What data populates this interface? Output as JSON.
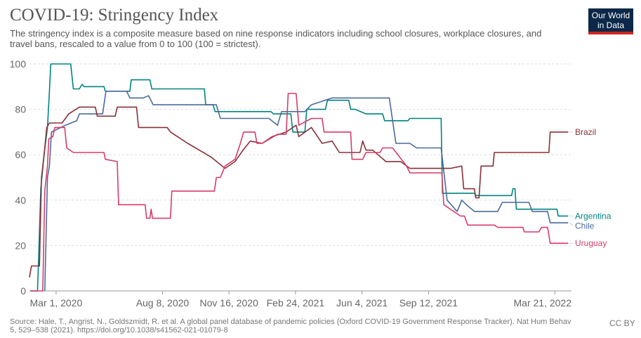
{
  "header": {
    "title": "COVID-19: Stringency Index",
    "subtitle": "The stringency index is a composite measure based on nine response indicators including school closures, workplace closures, and travel bans, rescaled to a value from 0 to 100 (100 = strictest)."
  },
  "logo": {
    "line1": "Our World",
    "line2": "in Data"
  },
  "footer": {
    "source": "Source: Hale, T., Angrist, N., Goldszmidt, R. et al. A global panel database of pandemic policies (Oxford COVID-19 Government Response Tracker). Nat Hum Behav 5, 529–538 (2021). https://doi.org/10.1038/s41562-021-01079-8",
    "license": "CC BY"
  },
  "chart_data": {
    "type": "line",
    "title": "COVID-19: Stringency Index",
    "xlabel": "",
    "ylabel": "",
    "ylim": [
      0,
      100
    ],
    "y_ticks": [
      0,
      20,
      40,
      60,
      80,
      100
    ],
    "x_range": [
      "2020-01-21",
      "2022-04-15"
    ],
    "x_ticks": [
      {
        "date": "2020-03-01",
        "label": "Mar 1, 2020"
      },
      {
        "date": "2020-08-08",
        "label": "Aug 8, 2020"
      },
      {
        "date": "2020-11-16",
        "label": "Nov 16, 2020"
      },
      {
        "date": "2021-02-24",
        "label": "Feb 24, 2021"
      },
      {
        "date": "2021-06-04",
        "label": "Jun 4, 2021"
      },
      {
        "date": "2021-09-12",
        "label": "Sep 12, 2021"
      },
      {
        "date": "2022-03-21",
        "label": "Mar 21, 2022"
      }
    ],
    "grid": true,
    "legend": "right-end labels",
    "series": [
      {
        "name": "Argentina",
        "color": "#00847e",
        "points": [
          [
            "2020-01-23",
            0
          ],
          [
            "2020-02-02",
            0
          ],
          [
            "2020-02-04",
            17
          ],
          [
            "2020-02-07",
            45
          ],
          [
            "2020-02-12",
            60
          ],
          [
            "2020-02-17",
            72
          ],
          [
            "2020-02-20",
            88
          ],
          [
            "2020-02-22",
            100
          ],
          [
            "2020-03-23",
            100
          ],
          [
            "2020-03-27",
            89
          ],
          [
            "2020-04-05",
            89
          ],
          [
            "2020-04-09",
            91
          ],
          [
            "2020-04-12",
            90
          ],
          [
            "2020-05-12",
            90
          ],
          [
            "2020-05-14",
            88
          ],
          [
            "2020-06-20",
            88
          ],
          [
            "2020-06-22",
            93
          ],
          [
            "2020-07-20",
            93
          ],
          [
            "2020-07-23",
            89
          ],
          [
            "2020-10-10",
            89
          ],
          [
            "2020-10-12",
            82
          ],
          [
            "2020-10-23",
            82
          ],
          [
            "2020-10-26",
            79
          ],
          [
            "2021-01-18",
            79
          ],
          [
            "2021-01-22",
            78
          ],
          [
            "2021-02-17",
            78
          ],
          [
            "2021-02-20",
            70
          ],
          [
            "2021-03-10",
            70
          ],
          [
            "2021-03-13",
            80
          ],
          [
            "2021-04-10",
            80
          ],
          [
            "2021-04-13",
            84
          ],
          [
            "2021-05-15",
            84
          ],
          [
            "2021-05-18",
            80
          ],
          [
            "2021-05-25",
            80
          ],
          [
            "2021-06-10",
            78
          ],
          [
            "2021-07-05",
            78
          ],
          [
            "2021-07-08",
            75
          ],
          [
            "2021-08-12",
            75
          ],
          [
            "2021-08-15",
            76
          ],
          [
            "2021-10-01",
            76
          ],
          [
            "2021-10-03",
            43
          ],
          [
            "2021-11-20",
            43
          ],
          [
            "2021-11-22",
            42
          ],
          [
            "2022-01-15",
            42
          ],
          [
            "2022-01-17",
            45
          ],
          [
            "2022-01-20",
            45
          ],
          [
            "2022-01-22",
            36
          ],
          [
            "2022-03-24",
            36
          ],
          [
            "2022-03-26",
            33
          ],
          [
            "2022-04-10",
            33
          ]
        ]
      },
      {
        "name": "Chile",
        "color": "#4c6a9c",
        "points": [
          [
            "2020-02-13",
            0
          ],
          [
            "2020-02-17",
            50
          ],
          [
            "2020-02-20",
            55
          ],
          [
            "2020-02-23",
            70
          ],
          [
            "2020-03-15",
            73
          ],
          [
            "2020-04-01",
            75
          ],
          [
            "2020-04-05",
            78
          ],
          [
            "2020-05-10",
            78
          ],
          [
            "2020-05-15",
            88
          ],
          [
            "2020-06-15",
            88
          ],
          [
            "2020-06-20",
            85
          ],
          [
            "2020-07-10",
            85
          ],
          [
            "2020-07-18",
            86
          ],
          [
            "2020-07-25",
            82
          ],
          [
            "2020-10-28",
            82
          ],
          [
            "2020-11-03",
            76
          ],
          [
            "2021-01-15",
            76
          ],
          [
            "2021-01-28",
            73
          ],
          [
            "2021-02-03",
            79
          ],
          [
            "2021-03-10",
            79
          ],
          [
            "2021-03-20",
            82
          ],
          [
            "2021-04-20",
            85
          ],
          [
            "2021-07-15",
            85
          ],
          [
            "2021-07-25",
            65
          ],
          [
            "2021-08-15",
            65
          ],
          [
            "2021-08-25",
            63
          ],
          [
            "2021-10-01",
            63
          ],
          [
            "2021-10-10",
            40
          ],
          [
            "2021-10-25",
            35
          ],
          [
            "2021-11-01",
            40
          ],
          [
            "2021-11-08",
            38
          ],
          [
            "2021-11-20",
            35
          ],
          [
            "2021-12-25",
            35
          ],
          [
            "2022-01-01",
            39
          ],
          [
            "2022-02-10",
            39
          ],
          [
            "2022-02-15",
            35
          ],
          [
            "2022-03-10",
            35
          ],
          [
            "2022-03-14",
            30
          ],
          [
            "2022-04-10",
            30
          ]
        ]
      },
      {
        "name": "Brazil",
        "color": "#883039",
        "points": [
          [
            "2020-01-21",
            6
          ],
          [
            "2020-01-24",
            11
          ],
          [
            "2020-02-05",
            11
          ],
          [
            "2020-02-08",
            50
          ],
          [
            "2020-02-12",
            60
          ],
          [
            "2020-02-16",
            72
          ],
          [
            "2020-02-20",
            74
          ],
          [
            "2020-03-10",
            74
          ],
          [
            "2020-03-20",
            78
          ],
          [
            "2020-04-05",
            81
          ],
          [
            "2020-04-29",
            81
          ],
          [
            "2020-05-02",
            77
          ],
          [
            "2020-05-29",
            77
          ],
          [
            "2020-06-01",
            81
          ],
          [
            "2020-06-30",
            81
          ],
          [
            "2020-07-03",
            72
          ],
          [
            "2020-08-15",
            72
          ],
          [
            "2020-08-20",
            70
          ],
          [
            "2020-09-15",
            65
          ],
          [
            "2020-10-20",
            59
          ],
          [
            "2020-11-10",
            54
          ],
          [
            "2020-11-25",
            57
          ],
          [
            "2020-12-07",
            62
          ],
          [
            "2020-12-18",
            66
          ],
          [
            "2021-01-05",
            65
          ],
          [
            "2021-01-20",
            68
          ],
          [
            "2021-02-10",
            70
          ],
          [
            "2021-02-25",
            73
          ],
          [
            "2021-03-01",
            68
          ],
          [
            "2021-03-20",
            72
          ],
          [
            "2021-04-05",
            65
          ],
          [
            "2021-04-20",
            66
          ],
          [
            "2021-05-01",
            61
          ],
          [
            "2021-06-01",
            61
          ],
          [
            "2021-06-05",
            66
          ],
          [
            "2021-06-10",
            62
          ],
          [
            "2021-06-20",
            62
          ],
          [
            "2021-07-10",
            57
          ],
          [
            "2021-08-01",
            57
          ],
          [
            "2021-08-15",
            54
          ],
          [
            "2021-10-15",
            54
          ],
          [
            "2021-11-01",
            55
          ],
          [
            "2021-11-04",
            45
          ],
          [
            "2021-11-20",
            45
          ],
          [
            "2021-11-22",
            41
          ],
          [
            "2021-11-27",
            41
          ],
          [
            "2021-11-30",
            55
          ],
          [
            "2021-12-18",
            55
          ],
          [
            "2021-12-20",
            61
          ],
          [
            "2022-03-12",
            61
          ],
          [
            "2022-03-14",
            70
          ],
          [
            "2022-04-10",
            70
          ]
        ]
      },
      {
        "name": "Uruguay",
        "color": "#d73c69",
        "points": [
          [
            "2020-01-22",
            0
          ],
          [
            "2020-02-10",
            0
          ],
          [
            "2020-02-13",
            44
          ],
          [
            "2020-02-17",
            55
          ],
          [
            "2020-02-19",
            67
          ],
          [
            "2020-02-25",
            68
          ],
          [
            "2020-02-28",
            72
          ],
          [
            "2020-03-14",
            72
          ],
          [
            "2020-03-17",
            63
          ],
          [
            "2020-03-27",
            61
          ],
          [
            "2020-05-12",
            61
          ],
          [
            "2020-05-14",
            58
          ],
          [
            "2020-06-01",
            57
          ],
          [
            "2020-06-03",
            38
          ],
          [
            "2020-07-13",
            38
          ],
          [
            "2020-07-15",
            32
          ],
          [
            "2020-07-20",
            32
          ],
          [
            "2020-07-22",
            36
          ],
          [
            "2020-07-24",
            32
          ],
          [
            "2020-08-20",
            32
          ],
          [
            "2020-08-22",
            44
          ],
          [
            "2020-10-25",
            44
          ],
          [
            "2020-10-28",
            50
          ],
          [
            "2020-11-03",
            50
          ],
          [
            "2020-11-10",
            55
          ],
          [
            "2020-11-25",
            58
          ],
          [
            "2020-12-02",
            64
          ],
          [
            "2020-12-08",
            70
          ],
          [
            "2020-12-25",
            70
          ],
          [
            "2020-12-28",
            65
          ],
          [
            "2021-01-05",
            65
          ],
          [
            "2021-01-28",
            69
          ],
          [
            "2021-02-10",
            69
          ],
          [
            "2021-02-13",
            87
          ],
          [
            "2021-02-25",
            87
          ],
          [
            "2021-03-01",
            73
          ],
          [
            "2021-03-20",
            76
          ],
          [
            "2021-04-05",
            76
          ],
          [
            "2021-04-08",
            70
          ],
          [
            "2021-05-18",
            70
          ],
          [
            "2021-05-20",
            58
          ],
          [
            "2021-06-05",
            58
          ],
          [
            "2021-06-10",
            61
          ],
          [
            "2021-07-01",
            61
          ],
          [
            "2021-07-05",
            63
          ],
          [
            "2021-07-20",
            63
          ],
          [
            "2021-08-10",
            55
          ],
          [
            "2021-08-15",
            52
          ],
          [
            "2021-10-02",
            52
          ],
          [
            "2021-10-05",
            38
          ],
          [
            "2021-10-30",
            33
          ],
          [
            "2021-11-05",
            33
          ],
          [
            "2021-11-10",
            29
          ],
          [
            "2021-12-20",
            29
          ],
          [
            "2021-12-25",
            28
          ],
          [
            "2022-02-01",
            28
          ],
          [
            "2022-02-03",
            26
          ],
          [
            "2022-02-25",
            26
          ],
          [
            "2022-03-01",
            28
          ],
          [
            "2022-03-10",
            28
          ],
          [
            "2022-03-14",
            21
          ],
          [
            "2022-04-10",
            21
          ]
        ]
      }
    ]
  }
}
